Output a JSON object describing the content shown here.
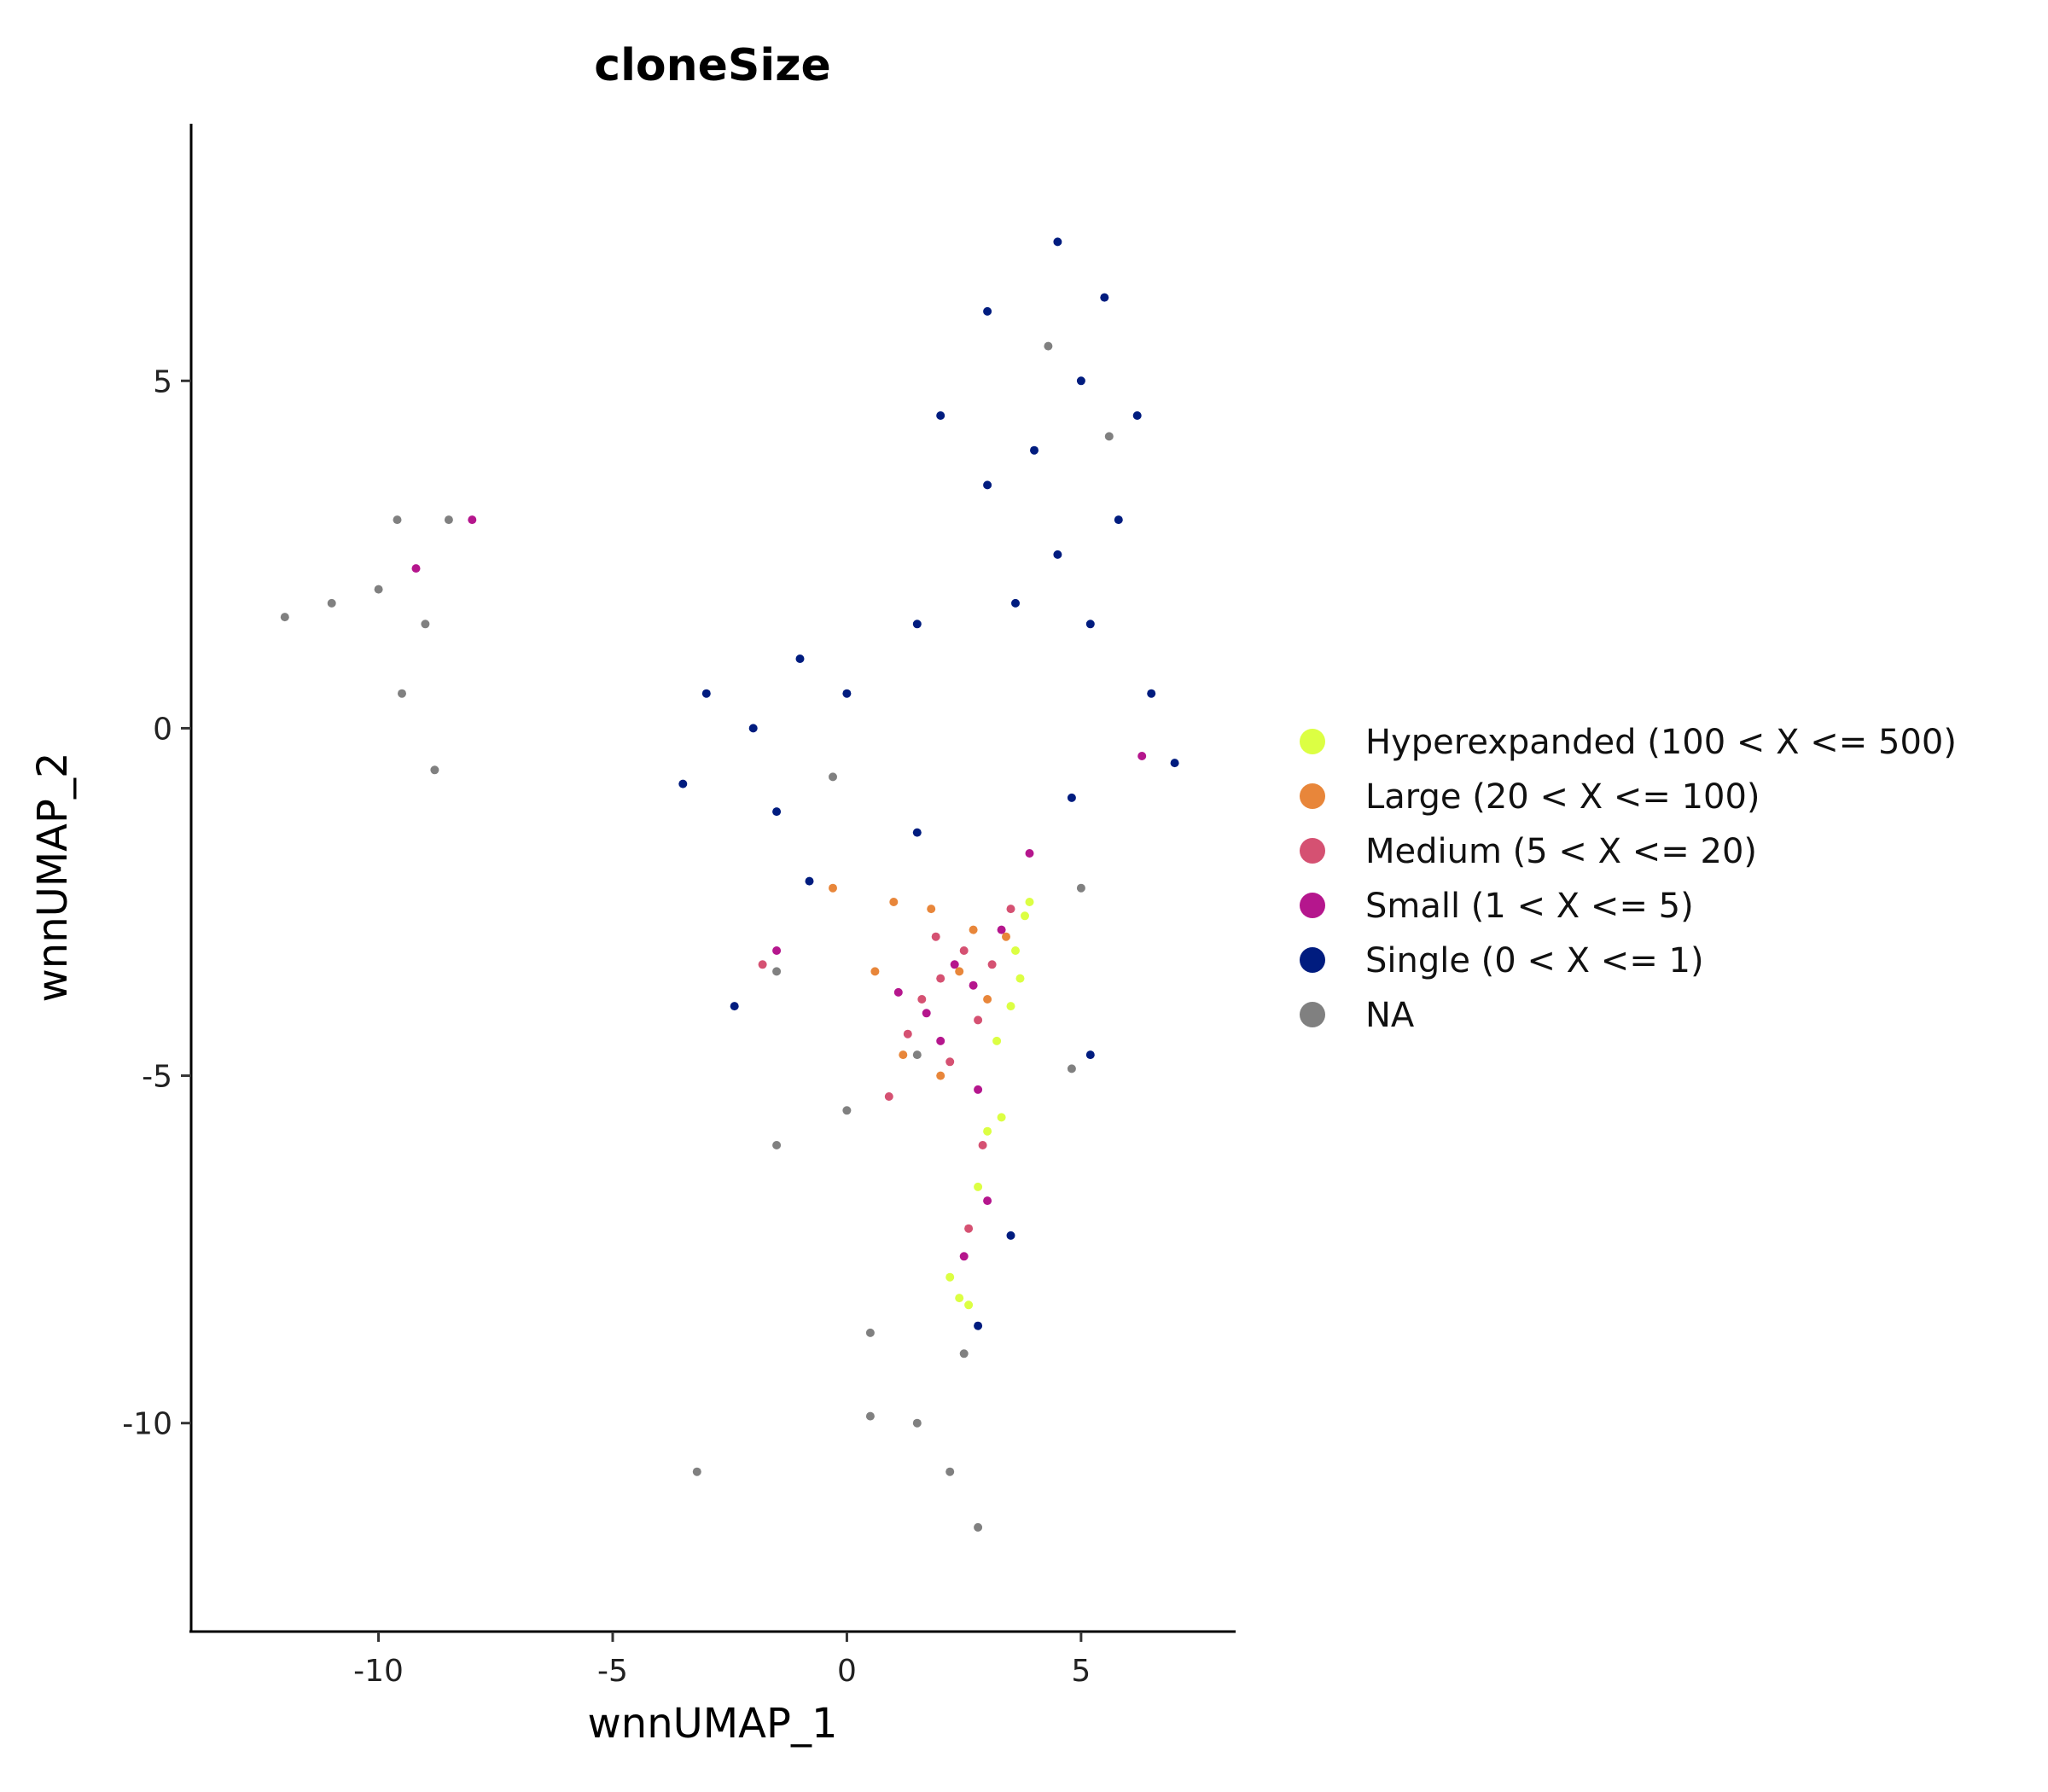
{
  "chart_data": {
    "type": "scatter",
    "title": "cloneSize",
    "xlabel": "wnnUMAP_1",
    "ylabel": "wnnUMAP_2",
    "xlim": [
      -14,
      8.3
    ],
    "ylim": [
      -13,
      8.7
    ],
    "grid": false,
    "legend_position": "right",
    "x_ticks": [
      -10,
      -5,
      0,
      5
    ],
    "y_ticks": [
      -10,
      -5,
      0,
      5
    ],
    "x_tick_labels": [
      "-10",
      "-5",
      "0",
      "5"
    ],
    "y_tick_labels": [
      "-10",
      "-5",
      "0",
      "5"
    ],
    "series": [
      {
        "name": "Hyperexpanded (100 < X <= 500)",
        "color": "#dcff43",
        "points": [
          [
            3.6,
            -3.2
          ],
          [
            3.8,
            -2.7
          ],
          [
            3.5,
            -4.0
          ],
          [
            3.3,
            -5.6
          ],
          [
            3.0,
            -5.8
          ],
          [
            2.8,
            -6.6
          ],
          [
            2.4,
            -8.2
          ],
          [
            2.6,
            -8.3
          ],
          [
            3.7,
            -3.6
          ],
          [
            3.9,
            -2.5
          ],
          [
            3.2,
            -4.5
          ],
          [
            2.2,
            -7.9
          ]
        ]
      },
      {
        "name": "Large (20 < X <= 100)",
        "color": "#e8863a",
        "points": [
          [
            1.8,
            -2.6
          ],
          [
            2.4,
            -3.5
          ],
          [
            3.0,
            -3.9
          ],
          [
            1.2,
            -4.7
          ],
          [
            3.4,
            -3.0
          ],
          [
            2.0,
            -5.0
          ],
          [
            2.7,
            -2.9
          ],
          [
            0.6,
            -3.5
          ],
          [
            -0.3,
            -2.3
          ],
          [
            1.0,
            -2.5
          ]
        ]
      },
      {
        "name": "Medium (5 < X <= 20)",
        "color": "#d55172",
        "points": [
          [
            2.0,
            -3.6
          ],
          [
            1.6,
            -3.9
          ],
          [
            2.5,
            -3.2
          ],
          [
            2.8,
            -4.2
          ],
          [
            1.3,
            -4.4
          ],
          [
            2.2,
            -4.8
          ],
          [
            0.9,
            -5.3
          ],
          [
            3.1,
            -3.4
          ],
          [
            1.9,
            -3.0
          ],
          [
            2.9,
            -6.0
          ],
          [
            2.6,
            -7.2
          ],
          [
            -1.8,
            -3.4
          ],
          [
            3.5,
            -2.6
          ]
        ]
      },
      {
        "name": "Small (1 < X <= 5)",
        "color": "#b5168d",
        "points": [
          [
            2.3,
            -3.4
          ],
          [
            1.7,
            -4.1
          ],
          [
            2.7,
            -3.7
          ],
          [
            1.1,
            -3.8
          ],
          [
            3.3,
            -2.9
          ],
          [
            2.0,
            -4.5
          ],
          [
            2.8,
            -5.2
          ],
          [
            3.0,
            -6.8
          ],
          [
            2.5,
            -7.6
          ],
          [
            -1.5,
            -3.2
          ],
          [
            -9.2,
            2.3
          ],
          [
            -8.0,
            3.0
          ],
          [
            3.9,
            -1.8
          ],
          [
            6.3,
            -0.4
          ]
        ]
      },
      {
        "name": "Single (0 < X <= 1)",
        "color": "#001c7f",
        "points": [
          [
            4.5,
            7.0
          ],
          [
            5.5,
            6.2
          ],
          [
            3.0,
            6.0
          ],
          [
            6.2,
            4.5
          ],
          [
            4.0,
            4.0
          ],
          [
            5.8,
            3.0
          ],
          [
            3.0,
            3.5
          ],
          [
            2.0,
            4.5
          ],
          [
            5.2,
            1.5
          ],
          [
            6.5,
            0.5
          ],
          [
            7.0,
            -0.5
          ],
          [
            -3.0,
            0.5
          ],
          [
            -2.0,
            0.0
          ],
          [
            -1.0,
            1.0
          ],
          [
            0.0,
            0.5
          ],
          [
            -3.5,
            -0.8
          ],
          [
            -1.5,
            -1.2
          ],
          [
            1.5,
            1.5
          ],
          [
            1.5,
            -1.5
          ],
          [
            4.8,
            -1.0
          ],
          [
            5.2,
            -4.7
          ],
          [
            3.5,
            -7.3
          ],
          [
            2.8,
            -8.6
          ],
          [
            -2.4,
            -4.0
          ],
          [
            -0.8,
            -2.2
          ],
          [
            4.5,
            2.5
          ],
          [
            3.6,
            1.8
          ],
          [
            5.0,
            5.0
          ]
        ]
      },
      {
        "name": "NA",
        "color": "#808080",
        "points": [
          [
            -10.0,
            2.0
          ],
          [
            -9.0,
            1.5
          ],
          [
            -11.0,
            1.8
          ],
          [
            -8.5,
            3.0
          ],
          [
            -9.5,
            0.5
          ],
          [
            -8.8,
            -0.6
          ],
          [
            -12.0,
            1.6
          ],
          [
            -9.6,
            3.0
          ],
          [
            1.5,
            -10.0
          ],
          [
            2.2,
            -10.7
          ],
          [
            2.8,
            -11.5
          ],
          [
            0.5,
            -9.9
          ],
          [
            2.5,
            -9.0
          ],
          [
            -1.5,
            -6.0
          ],
          [
            0.0,
            -5.5
          ],
          [
            1.5,
            -4.7
          ],
          [
            -1.5,
            -3.5
          ],
          [
            4.8,
            -4.9
          ],
          [
            5.0,
            -2.3
          ],
          [
            -0.3,
            -0.7
          ],
          [
            -3.2,
            -10.7
          ],
          [
            0.5,
            -8.7
          ],
          [
            4.3,
            5.5
          ],
          [
            5.6,
            4.2
          ]
        ]
      }
    ]
  }
}
